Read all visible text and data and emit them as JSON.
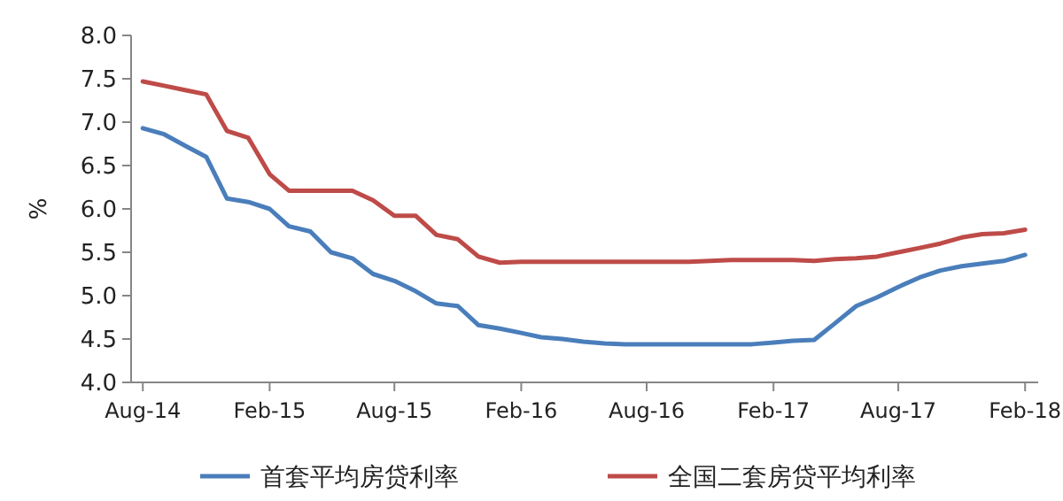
{
  "chart_data": {
    "type": "line",
    "ylabel": "%",
    "x": [
      "2014-08",
      "2014-09",
      "2014-10",
      "2014-11",
      "2014-12",
      "2015-01",
      "2015-02",
      "2015-03",
      "2015-04",
      "2015-05",
      "2015-06",
      "2015-07",
      "2015-08",
      "2015-09",
      "2015-10",
      "2015-11",
      "2015-12",
      "2016-01",
      "2016-02",
      "2016-03",
      "2016-04",
      "2016-05",
      "2016-06",
      "2016-07",
      "2016-08",
      "2016-09",
      "2016-10",
      "2016-11",
      "2016-12",
      "2017-01",
      "2017-02",
      "2017-03",
      "2017-04",
      "2017-05",
      "2017-06",
      "2017-07",
      "2017-08",
      "2017-09",
      "2017-10",
      "2017-11",
      "2017-12",
      "2018-01",
      "2018-02"
    ],
    "series": [
      {
        "name": "首套平均房贷利率",
        "color": "#4a7ebb",
        "values": [
          6.93,
          6.86,
          6.73,
          6.6,
          6.12,
          6.08,
          6.0,
          5.8,
          5.74,
          5.5,
          5.43,
          5.25,
          5.17,
          5.05,
          4.91,
          4.88,
          4.66,
          4.62,
          4.57,
          4.52,
          4.5,
          4.47,
          4.45,
          4.44,
          4.44,
          4.44,
          4.44,
          4.44,
          4.44,
          4.44,
          4.46,
          4.48,
          4.49,
          4.68,
          4.88,
          4.98,
          5.1,
          5.21,
          5.29,
          5.34,
          5.37,
          5.4,
          5.47
        ]
      },
      {
        "name": "全国二套房贷平均利率",
        "color": "#be4b48",
        "values": [
          7.47,
          7.42,
          7.37,
          7.32,
          6.9,
          6.82,
          6.4,
          6.21,
          6.21,
          6.21,
          6.21,
          6.1,
          5.92,
          5.92,
          5.7,
          5.65,
          5.45,
          5.38,
          5.39,
          5.39,
          5.39,
          5.39,
          5.39,
          5.39,
          5.39,
          5.39,
          5.39,
          5.4,
          5.41,
          5.41,
          5.41,
          5.41,
          5.4,
          5.42,
          5.43,
          5.45,
          5.5,
          5.55,
          5.6,
          5.67,
          5.71,
          5.72,
          5.76
        ]
      }
    ],
    "xlim": [
      "2014-07-15",
      "2018-02-20"
    ],
    "xticks": [
      {
        "value": "2014-08",
        "label": "Aug-14"
      },
      {
        "value": "2015-02",
        "label": "Feb-15"
      },
      {
        "value": "2015-08",
        "label": "Aug-15"
      },
      {
        "value": "2016-02",
        "label": "Feb-16"
      },
      {
        "value": "2016-08",
        "label": "Aug-16"
      },
      {
        "value": "2017-02",
        "label": "Feb-17"
      },
      {
        "value": "2017-08",
        "label": "Aug-17"
      },
      {
        "value": "2018-02",
        "label": "Feb-18"
      }
    ],
    "ylim": [
      4,
      8
    ],
    "yticks": [
      {
        "value": 4,
        "label": "4.0"
      },
      {
        "value": 4.5,
        "label": "4.5"
      },
      {
        "value": 5,
        "label": "5.0"
      },
      {
        "value": 5.5,
        "label": "5.5"
      },
      {
        "value": 6,
        "label": "6.0"
      },
      {
        "value": 6.5,
        "label": "6.5"
      },
      {
        "value": 7,
        "label": "7.0"
      },
      {
        "value": 7.5,
        "label": "7.5"
      },
      {
        "value": 8,
        "label": "8.0"
      }
    ],
    "grid": false,
    "legend": "bottom",
    "marker": "none",
    "line_style": "solid"
  }
}
